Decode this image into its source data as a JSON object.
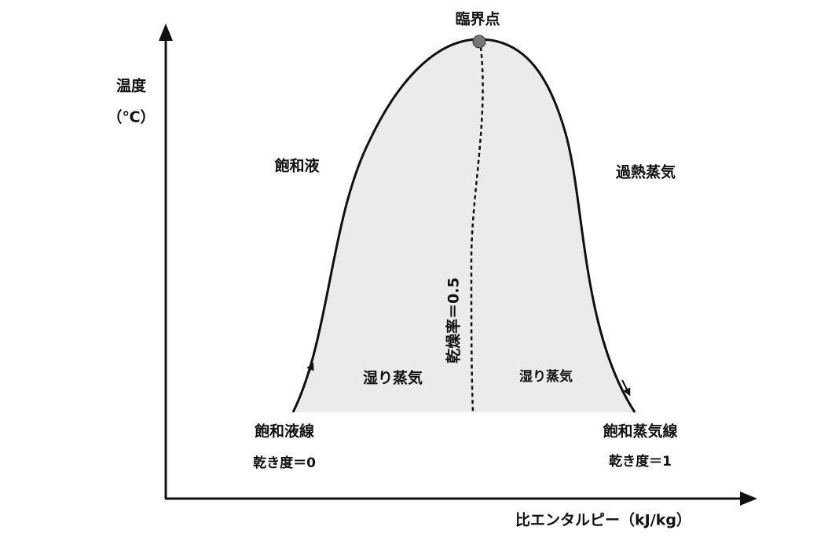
{
  "axes": {
    "y_label": "温度",
    "y_unit": "（℃）",
    "x_label": "比エンタルピー（kJ/kg）"
  },
  "critical_point": "臨界点",
  "regions": {
    "liquid": "飽和液",
    "superheated": "過熱蒸気",
    "wet_left": "湿り蒸気",
    "wet_right": "湿り蒸気"
  },
  "quality_line": "乾燥率＝0.5",
  "saturated_liquid_line": {
    "name": "飽和液線",
    "quality": "乾き度＝0"
  },
  "saturated_vapor_line": {
    "name": "飽和蒸気線",
    "quality": "乾き度＝1"
  }
}
